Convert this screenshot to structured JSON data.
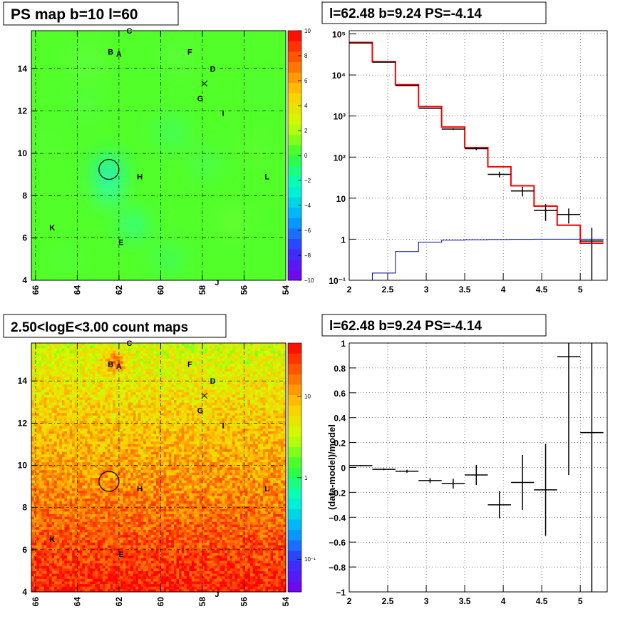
{
  "chart_data": [
    {
      "type": "heatmap",
      "title": "PS map b=10 l=60",
      "x_ticks": [
        "66",
        "64",
        "62",
        "60",
        "58",
        "56",
        "54"
      ],
      "y_ticks": [
        "4",
        "6",
        "8",
        "10",
        "12",
        "14"
      ],
      "xlim": [
        66.2,
        54
      ],
      "ylim": [
        4,
        15.8
      ],
      "colorbar_ticks": [
        "10",
        "8",
        "6",
        "4",
        "2",
        "0",
        "−2",
        "−4",
        "−6",
        "−8",
        "−10"
      ],
      "colorbar_range": [
        -10,
        10
      ],
      "colormap": [
        "#7a00e6",
        "#3333ff",
        "#00aaff",
        "#00ffcc",
        "#33ff33",
        "#ccff00",
        "#ffcc00",
        "#ff6600",
        "#ff0000"
      ],
      "background_value": 0.5,
      "source_labels": [
        {
          "text": "C",
          "l": 61.5,
          "b": 15.8
        },
        {
          "text": "B",
          "l": 62.4,
          "b": 14.8
        },
        {
          "text": "A",
          "l": 62.0,
          "b": 14.7
        },
        {
          "text": "F",
          "l": 58.6,
          "b": 14.8
        },
        {
          "text": "D",
          "l": 57.5,
          "b": 14.0
        },
        {
          "text": "G",
          "l": 58.1,
          "b": 12.6
        },
        {
          "text": "I",
          "l": 57.0,
          "b": 11.9
        },
        {
          "text": "H",
          "l": 61.0,
          "b": 8.9
        },
        {
          "text": "L",
          "l": 54.9,
          "b": 8.9
        },
        {
          "text": "K",
          "l": 65.2,
          "b": 6.5
        },
        {
          "text": "E",
          "l": 61.9,
          "b": 5.8
        },
        {
          "text": "J",
          "l": 57.3,
          "b": 3.9
        }
      ],
      "marker_x": {
        "l": 57.9,
        "b": 13.3
      },
      "circle": {
        "l": 62.48,
        "b": 9.24
      }
    },
    {
      "type": "line",
      "title": "l=62.48 b=9.24 PS=-4.14",
      "x_ticks": [
        "2",
        "2.5",
        "3",
        "3.5",
        "4",
        "4.5",
        "5"
      ],
      "y_ticks": [
        "10⁻¹",
        "1",
        "10",
        "10²",
        "10³",
        "10⁴",
        "10⁵"
      ],
      "xlim": [
        2,
        5.35
      ],
      "ylim": [
        0.1,
        120000
      ],
      "log_y": true,
      "edges": [
        2.0,
        2.3,
        2.6,
        2.9,
        3.2,
        3.5,
        3.8,
        4.1,
        4.4,
        4.7,
        5.0,
        5.3
      ],
      "series": [
        {
          "color": "#ff0000",
          "values": [
            62000,
            21000,
            5800,
            1700,
            540,
            170,
            58,
            20,
            6.4,
            2.2,
            0.8
          ]
        },
        {
          "color": "#000000",
          "values": [
            60000,
            20500,
            5500,
            1550,
            480,
            160,
            38,
            15,
            5.0,
            4.0,
            0.9
          ],
          "errors": [
            250,
            140,
            75,
            40,
            22,
            13,
            6,
            4,
            2.2,
            1.6,
            1.0
          ]
        },
        {
          "color": "#0000aa",
          "values": [
            0.1,
            0.15,
            0.5,
            0.85,
            0.95,
            0.97,
            0.98,
            0.99,
            1.0,
            1.0,
            1.0
          ]
        }
      ]
    },
    {
      "type": "heatmap",
      "title": "2.50<logE<3.00 count maps",
      "x_ticks": [
        "66",
        "64",
        "62",
        "60",
        "58",
        "56",
        "54"
      ],
      "y_ticks": [
        "4",
        "6",
        "8",
        "10",
        "12",
        "14"
      ],
      "xlim": [
        66.2,
        54
      ],
      "ylim": [
        4,
        15.8
      ],
      "colorbar_ticks": [
        "10",
        "1",
        "10⁻¹"
      ],
      "colorbar_range": [
        -1.4,
        1.65
      ],
      "colormap": [
        "#7a00e6",
        "#3333ff",
        "#00aaff",
        "#00ffcc",
        "#33ff33",
        "#ccff00",
        "#ffcc00",
        "#ff6600",
        "#ff0000"
      ],
      "source_labels": [
        {
          "text": "C",
          "l": 61.5,
          "b": 15.8
        },
        {
          "text": "B",
          "l": 62.4,
          "b": 14.8
        },
        {
          "text": "A",
          "l": 62.0,
          "b": 14.7
        },
        {
          "text": "F",
          "l": 58.6,
          "b": 14.8
        },
        {
          "text": "D",
          "l": 57.5,
          "b": 14.0
        },
        {
          "text": "G",
          "l": 58.1,
          "b": 12.6
        },
        {
          "text": "I",
          "l": 57.0,
          "b": 11.9
        },
        {
          "text": "H",
          "l": 61.0,
          "b": 8.9
        },
        {
          "text": "L",
          "l": 54.9,
          "b": 8.9
        },
        {
          "text": "K",
          "l": 65.2,
          "b": 6.5
        },
        {
          "text": "E",
          "l": 61.9,
          "b": 5.8
        },
        {
          "text": "J",
          "l": 57.3,
          "b": 3.9
        }
      ],
      "marker_x": {
        "l": 57.9,
        "b": 13.3
      },
      "circle": {
        "l": 62.48,
        "b": 9.24
      }
    },
    {
      "type": "scatter",
      "title": "l=62.48 b=9.24 PS=-4.14",
      "ylabel": "(data-model)/model",
      "x_ticks": [
        "2",
        "2.5",
        "3",
        "3.5",
        "4",
        "4.5",
        "5"
      ],
      "y_ticks": [
        "−1",
        "−0.8",
        "−0.6",
        "−0.4",
        "−0.2",
        "0",
        "0.2",
        "0.4",
        "0.6",
        "0.8",
        "1"
      ],
      "xlim": [
        2,
        5.35
      ],
      "ylim": [
        -1,
        1
      ],
      "points": [
        {
          "x": 2.15,
          "y": 0.015,
          "xerr": 0.15,
          "yerr": 0.005
        },
        {
          "x": 2.45,
          "y": -0.015,
          "xerr": 0.15,
          "yerr": 0.007
        },
        {
          "x": 2.75,
          "y": -0.03,
          "xerr": 0.15,
          "yerr": 0.012
        },
        {
          "x": 3.05,
          "y": -0.105,
          "xerr": 0.15,
          "yerr": 0.02
        },
        {
          "x": 3.35,
          "y": -0.13,
          "xerr": 0.15,
          "yerr": 0.04
        },
        {
          "x": 3.65,
          "y": -0.06,
          "xerr": 0.15,
          "yerr": 0.08
        },
        {
          "x": 3.95,
          "y": -0.3,
          "xerr": 0.15,
          "yerr": 0.11
        },
        {
          "x": 4.25,
          "y": -0.12,
          "xerr": 0.15,
          "yerr": 0.22
        },
        {
          "x": 4.55,
          "y": -0.18,
          "xerr": 0.15,
          "yerr": 0.37
        },
        {
          "x": 4.85,
          "y": 0.89,
          "xerr": 0.15,
          "yerr": 0.95
        },
        {
          "x": 5.15,
          "y": 0.28,
          "xerr": 0.15,
          "yerr": 1.3
        }
      ]
    }
  ]
}
